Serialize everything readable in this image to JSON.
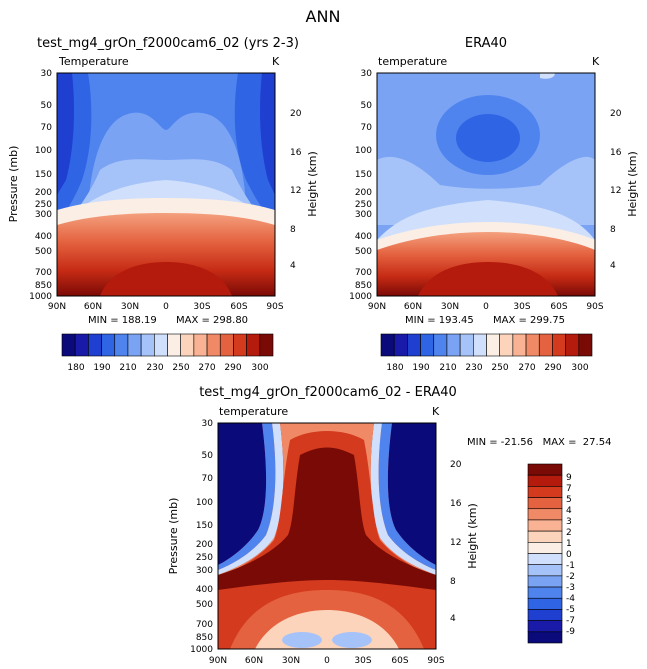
{
  "page_title": "ANN",
  "palette_temp": [
    "#0a0a7a",
    "#1a1aa8",
    "#1f3fd0",
    "#2f64e4",
    "#4f84ee",
    "#7aa3f4",
    "#a6c3f9",
    "#cfdffc",
    "#fbeee5",
    "#fcd3bb",
    "#f9b293",
    "#f08a66",
    "#e4623f",
    "#d33a1e",
    "#b41b0c",
    "#7a0a06"
  ],
  "palette_diff": [
    "#0a0a7a",
    "#1a1aa8",
    "#1f3fd0",
    "#2f64e4",
    "#4f84ee",
    "#7aa3f4",
    "#a6c3f9",
    "#cfdffc",
    "#fbeee5",
    "#fcd3bb",
    "#f9b293",
    "#f08a66",
    "#e4623f",
    "#d33a1e",
    "#b41b0c",
    "#7a0a06"
  ],
  "chart_data": [
    {
      "type": "heatmap",
      "title": "test_mg4_grOn_f2000cam6_02 (yrs 2-3)",
      "left_label": "Temperature",
      "unit": "K",
      "xlabel": "",
      "ylabel": "Pressure (mb)",
      "y2label": "Height (km)",
      "x_ticks": [
        "90N",
        "60N",
        "30N",
        "0",
        "30S",
        "60S",
        "90S"
      ],
      "y_ticks": [
        "30",
        "50",
        "70",
        "100",
        "150",
        "200",
        "250",
        "300",
        "400",
        "500",
        "700",
        "850",
        "1000"
      ],
      "y2_ticks": [
        "20",
        "16",
        "12",
        "8",
        "4"
      ],
      "min_text": "MIN = 188.19",
      "max_text": "MAX = 298.80",
      "min": 188.19,
      "max": 298.8,
      "colorbar_levels": [
        "180",
        "190",
        "210",
        "230",
        "250",
        "270",
        "290",
        "300"
      ]
    },
    {
      "type": "heatmap",
      "title": "ERA40",
      "left_label": "temperature",
      "unit": "K",
      "xlabel": "",
      "ylabel": "Pressure (mb)",
      "y2label": "Height (km)",
      "x_ticks": [
        "90N",
        "60N",
        "30N",
        "0",
        "30S",
        "60S",
        "90S"
      ],
      "y_ticks": [
        "30",
        "50",
        "70",
        "100",
        "150",
        "200",
        "250",
        "300",
        "400",
        "500",
        "700",
        "850",
        "1000"
      ],
      "y2_ticks": [
        "20",
        "16",
        "12",
        "8",
        "4"
      ],
      "min_text": "MIN = 193.45",
      "max_text": "MAX = 299.75",
      "min": 193.45,
      "max": 299.75,
      "colorbar_levels": [
        "180",
        "190",
        "210",
        "230",
        "250",
        "270",
        "290",
        "300"
      ]
    },
    {
      "type": "heatmap",
      "title": "test_mg4_grOn_f2000cam6_02 - ERA40",
      "left_label": "temperature",
      "unit": "K",
      "xlabel": "",
      "ylabel": "Pressure (mb)",
      "y2label": "Height (km)",
      "x_ticks": [
        "90N",
        "60N",
        "30N",
        "0",
        "30S",
        "60S",
        "90S"
      ],
      "y_ticks": [
        "30",
        "50",
        "70",
        "100",
        "150",
        "200",
        "250",
        "300",
        "400",
        "500",
        "700",
        "850",
        "1000"
      ],
      "y2_ticks": [
        "20",
        "16",
        "12",
        "8",
        "4"
      ],
      "minmax_text": "MIN = -21.56   MAX =  27.54",
      "min": -21.56,
      "max": 27.54,
      "colorbar_levels": [
        "9",
        "7",
        "5",
        "4",
        "3",
        "2",
        "1",
        "0",
        "-1",
        "-2",
        "-3",
        "-4",
        "-5",
        "-7",
        "-9"
      ]
    }
  ]
}
